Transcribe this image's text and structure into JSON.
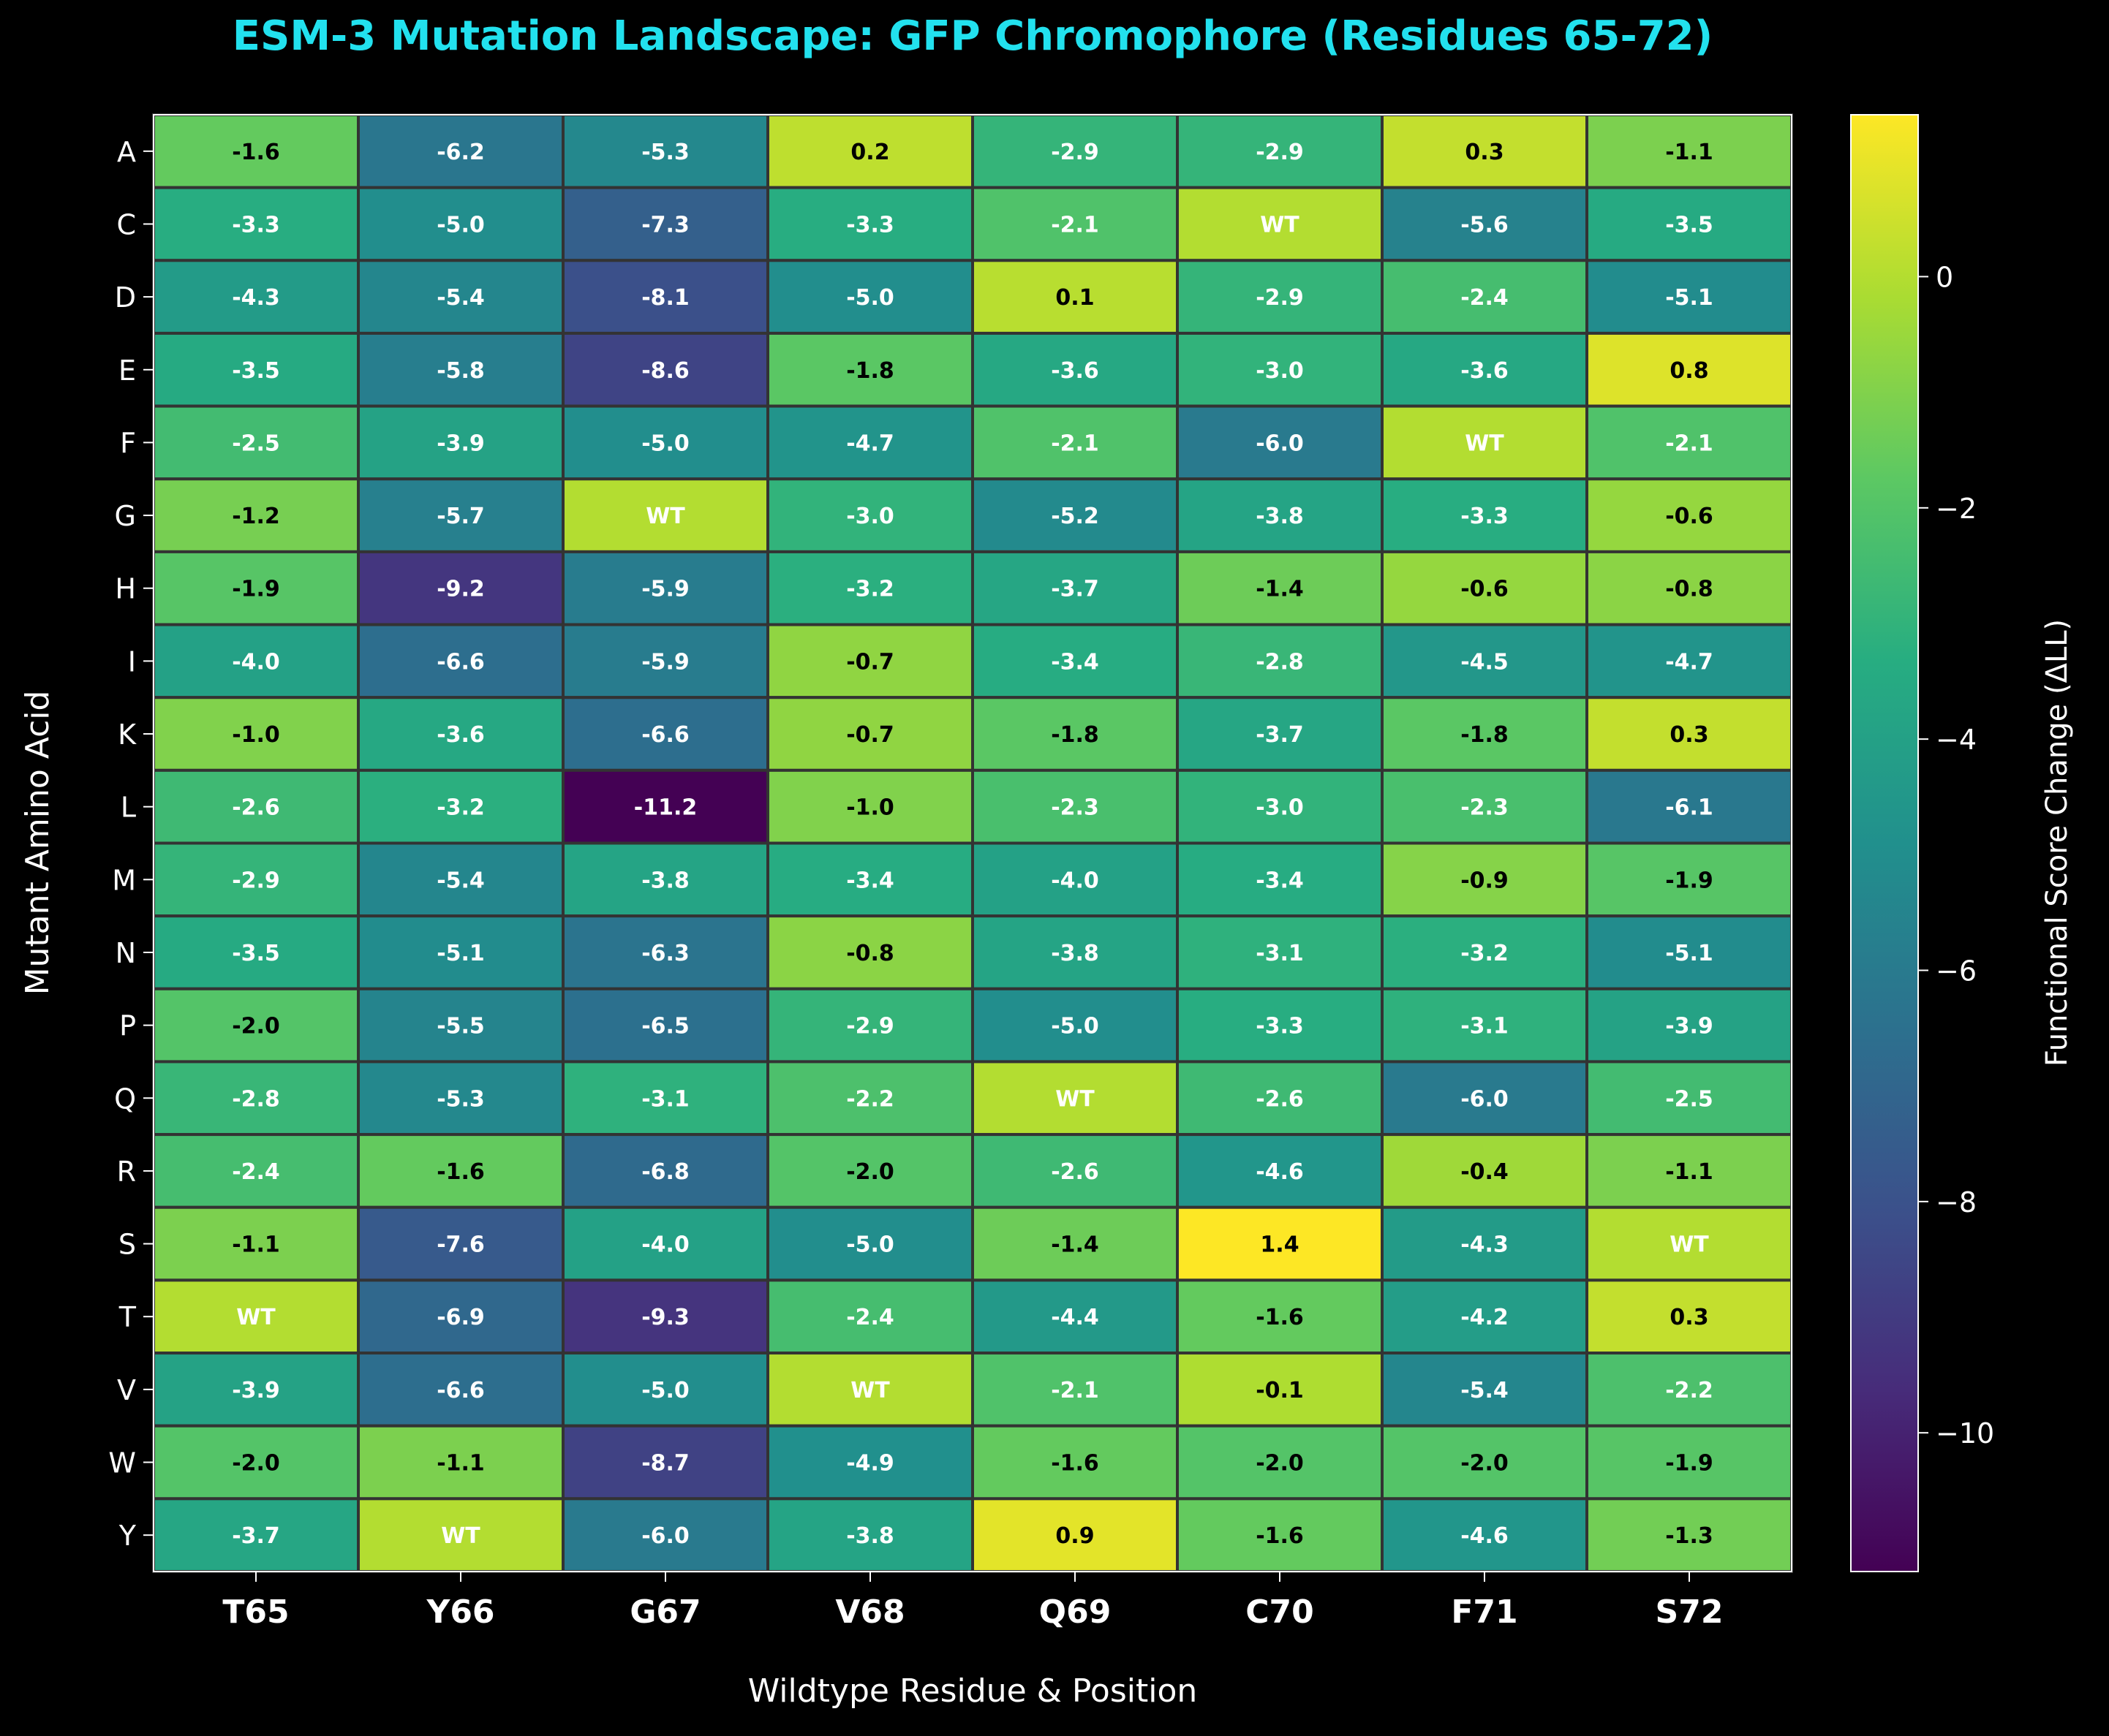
{
  "chart_data": {
    "type": "heatmap",
    "title": "ESM-3 Mutation Landscape: GFP Chromophore (Residues 65-72)",
    "xlabel": "Wildtype Residue & Position",
    "ylabel": "Mutant Amino Acid",
    "x_categories": [
      "T65",
      "Y66",
      "G67",
      "V68",
      "Q69",
      "C70",
      "F71",
      "S72"
    ],
    "y_categories": [
      "A",
      "C",
      "D",
      "E",
      "F",
      "G",
      "H",
      "I",
      "K",
      "L",
      "M",
      "N",
      "P",
      "Q",
      "R",
      "S",
      "T",
      "V",
      "W",
      "Y"
    ],
    "values": [
      [
        -1.6,
        -6.2,
        -5.3,
        0.2,
        -2.9,
        -2.9,
        0.3,
        -1.1
      ],
      [
        -3.3,
        -5.0,
        -7.3,
        -3.3,
        -2.1,
        null,
        -5.6,
        -3.5
      ],
      [
        -4.3,
        -5.4,
        -8.1,
        -5.0,
        0.1,
        -2.9,
        -2.4,
        -5.1
      ],
      [
        -3.5,
        -5.8,
        -8.6,
        -1.8,
        -3.6,
        -3.0,
        -3.6,
        0.8
      ],
      [
        -2.5,
        -3.9,
        -5.0,
        -4.7,
        -2.1,
        -6.0,
        null,
        -2.1
      ],
      [
        -1.2,
        -5.7,
        null,
        -3.0,
        -5.2,
        -3.8,
        -3.3,
        -0.6
      ],
      [
        -1.9,
        -9.2,
        -5.9,
        -3.2,
        -3.7,
        -1.4,
        -0.6,
        -0.8
      ],
      [
        -4.0,
        -6.6,
        -5.9,
        -0.7,
        -3.4,
        -2.8,
        -4.5,
        -4.7
      ],
      [
        -1.0,
        -3.6,
        -6.6,
        -0.7,
        -1.8,
        -3.7,
        -1.8,
        0.3
      ],
      [
        -2.6,
        -3.2,
        -11.2,
        -1.0,
        -2.3,
        -3.0,
        -2.3,
        -6.1
      ],
      [
        -2.9,
        -5.4,
        -3.8,
        -3.4,
        -4.0,
        -3.4,
        -0.9,
        -1.9
      ],
      [
        -3.5,
        -5.1,
        -6.3,
        -0.8,
        -3.8,
        -3.1,
        -3.2,
        -5.1
      ],
      [
        -2.0,
        -5.5,
        -6.5,
        -2.9,
        -5.0,
        -3.3,
        -3.1,
        -3.9
      ],
      [
        -2.8,
        -5.3,
        -3.1,
        -2.2,
        null,
        -2.6,
        -6.0,
        -2.5
      ],
      [
        -2.4,
        -1.6,
        -6.8,
        -2.0,
        -2.6,
        -4.6,
        -0.4,
        -1.1
      ],
      [
        -1.1,
        -7.6,
        -4.0,
        -5.0,
        -1.4,
        1.4,
        -4.3,
        null
      ],
      [
        null,
        -6.9,
        -9.3,
        -2.4,
        -4.4,
        -1.6,
        -4.2,
        0.3
      ],
      [
        -3.9,
        -6.6,
        -5.0,
        null,
        -2.1,
        -0.1,
        -5.4,
        -2.2
      ],
      [
        -2.0,
        -1.1,
        -8.7,
        -4.9,
        -1.6,
        -2.0,
        -2.0,
        -1.9
      ],
      [
        -3.7,
        null,
        -6.0,
        -3.8,
        0.9,
        -1.6,
        -4.6,
        -1.3
      ]
    ],
    "wildtype_label": "WT",
    "wildtype_value": 0,
    "colorscale": "viridis",
    "vmin": -11.2,
    "vmax": 1.4,
    "colorbar": {
      "label": "Functional Score Change (ΔLL)",
      "ticks": [
        0,
        -2,
        -4,
        -6,
        -8,
        -10
      ],
      "tick_labels": [
        "0",
        "−2",
        "−4",
        "−6",
        "−8",
        "−10"
      ]
    },
    "colors": {
      "background": "#000000",
      "title": "#22e1ee",
      "text": "#ffffff",
      "cell_border": "#333333"
    }
  }
}
